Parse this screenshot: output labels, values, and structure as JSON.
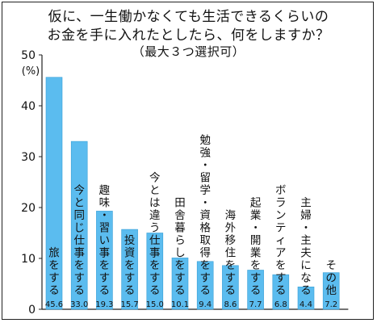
{
  "title_line1": "仮に、一生働かなくても生活できるくらいの",
  "title_line2": "お金を手に入れたとしたら、何をしますか？",
  "subtitle": "（最大３つ選択可）",
  "colors": {
    "bar": "#5bbcef",
    "bar_edge": "#3a9fd6",
    "axis": "#222222"
  },
  "chart_data": {
    "type": "bar",
    "title": "仮に、一生働かなくても生活できるくらいのお金を手に入れたとしたら、何をしますか？（最大３つ選択可）",
    "ylabel": "(%)",
    "ylim": [
      0,
      50
    ],
    "yticks": [
      0,
      10,
      20,
      30,
      40,
      50
    ],
    "categories": [
      "旅をする",
      "今と同じ仕事をする",
      "趣味・習い事をする",
      "投資をする",
      "今とは違う仕事をする",
      "田舎暮らしをする",
      "勉強・留学・資格取得をする",
      "海外移住をする",
      "起業・開業をする",
      "ボランティアをする",
      "主婦・主夫になる",
      "その他"
    ],
    "values": [
      45.6,
      33.0,
      19.3,
      15.7,
      15.0,
      10.1,
      9.4,
      8.6,
      7.7,
      6.8,
      4.4,
      7.2
    ],
    "value_labels": [
      "45.6",
      "33.0",
      "19.3",
      "15.7",
      "15.0",
      "10.1",
      "9.4",
      "8.6",
      "7.7",
      "6.8",
      "4.4",
      "7.2"
    ]
  }
}
